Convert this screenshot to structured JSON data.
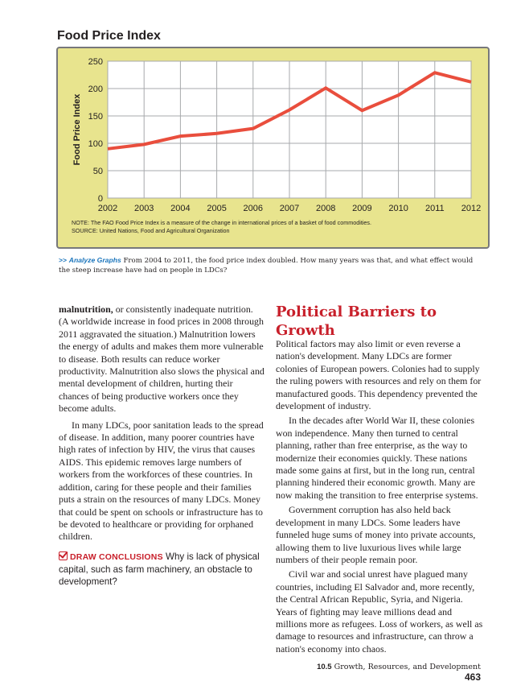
{
  "figure": {
    "title": "Food Price Index",
    "note": "NOTE: The FAO Food Price Index is a measure of the change in international prices of a basket of food commodities.",
    "source": "SOURCE: United Nations, Food and Agricultural Organization",
    "colors": {
      "panel": "#e8e48e",
      "line": "#e94e3d",
      "border": "#77787b"
    }
  },
  "chart_data": {
    "type": "line",
    "title": "Food Price Index",
    "xlabel": "",
    "ylabel": "Food Price Index",
    "x": [
      2002,
      2003,
      2004,
      2005,
      2006,
      2007,
      2008,
      2009,
      2010,
      2011,
      2012
    ],
    "series": [
      {
        "values": [
          90,
          98,
          113,
          118,
          127,
          161,
          201,
          160,
          188,
          229,
          212
        ]
      }
    ],
    "ylim": [
      0,
      250
    ],
    "yticks": [
      0,
      50,
      100,
      150,
      200,
      250
    ],
    "xticks": [
      "2002",
      "2003",
      "2004",
      "2005",
      "2006",
      "2007",
      "2008",
      "2009",
      "2010",
      "2011",
      "2012"
    ],
    "grid": true,
    "line_color": "#e94e3d"
  },
  "caption": {
    "marker": ">>",
    "label": "Analyze Graphs",
    "text": "From 2004 to 2011, the food price index doubled. How many years was that, and what effect would the steep increase have had on people in LDCs?"
  },
  "left_column": {
    "lead_term": "malnutrition,",
    "p1_rest": "or consistently inadequate nutrition. (A worldwide increase in food prices in 2008 through 2011 aggravated the situation.) Malnutrition lowers the energy of adults and makes them more vulnerable to disease. Both results can reduce worker productivity. Malnutrition also slows the physical and mental development of children, hurting their chances of being productive workers once they become adults.",
    "p2": "In many LDCs, poor sanitation leads to the spread of disease. In addition, many poorer countries have high rates of infection by HIV, the virus that causes AIDS. This epidemic removes large numbers of workers from the workforces of these countries. In addition, caring for these people and their families puts a strain on the resources of many LDCs. Money that could be spent on schools or infrastructure has to be devoted to healthcare or providing for orphaned children.",
    "draw_conclusions_label": "DRAW CONCLUSIONS",
    "draw_conclusions_text": "Why is lack of physical capital, such as farm machinery, an obstacle to development?"
  },
  "right_column": {
    "heading": "Political Barriers to Growth",
    "p1": "Political factors may also limit or even reverse a nation's development. Many LDCs are former colonies of European powers. Colonies had to supply the ruling powers with resources and rely on them for manufactured goods. This dependency prevented the development of industry.",
    "p2": "In the decades after World War II, these colonies won independence. Many then turned to central planning, rather than free enterprise, as the way to modernize their economies quickly. These nations made some gains at first, but in the long run, central planning hindered their economic growth. Many are now making the transition to free enterprise systems.",
    "p3": "Government corruption has also held back development in many LDCs. Some leaders have funneled huge sums of money into private accounts, allowing them to live luxurious lives while large numbers of their people remain poor.",
    "p4": "Civil war and social unrest have plagued many countries, including El Salvador and, more recently, the Central African Republic, Syria, and Nigeria. Years of fighting may leave millions dead and millions more as refugees. Loss of workers, as well as damage to resources and infrastructure, can throw a nation's economy into chaos."
  },
  "footer": {
    "section_number": "10.5",
    "section_title": "Growth, Resources, and Development",
    "page_number": "463"
  }
}
